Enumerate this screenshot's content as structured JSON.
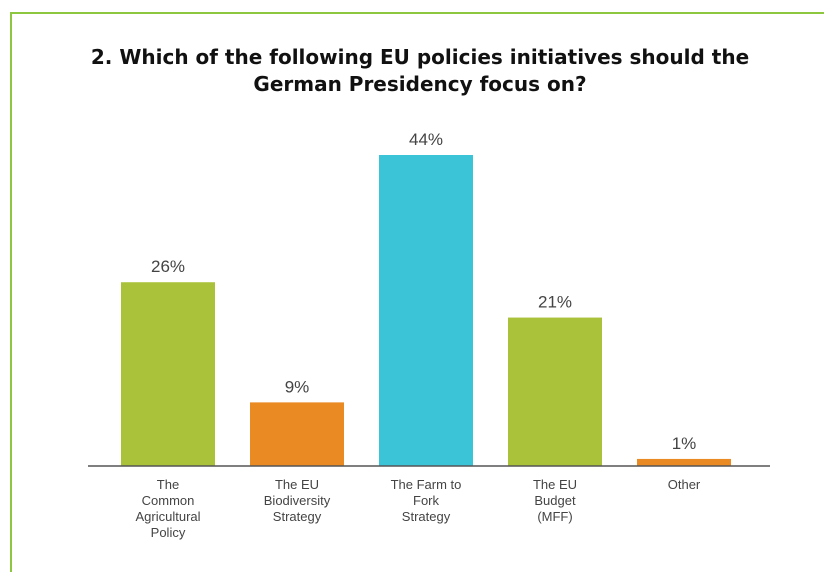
{
  "chart_data": {
    "type": "bar",
    "title": "2. Which of the following EU policies initiatives should the German Presidency focus on?",
    "categories": [
      [
        "The",
        "Common",
        "Agricultural",
        "Policy"
      ],
      [
        "The EU",
        "Biodiversity",
        "Strategy"
      ],
      [
        "The Farm to",
        "Fork",
        "Strategy"
      ],
      [
        "The EU",
        "Budget",
        "(MFF)"
      ],
      [
        "Other"
      ]
    ],
    "values": [
      26,
      9,
      44,
      21,
      1
    ],
    "value_labels": [
      "26%",
      "9%",
      "44%",
      "21%",
      "1%"
    ],
    "colors": [
      "#a9c23a",
      "#ea8a23",
      "#3bc3d8",
      "#a9c23a",
      "#ea8a23"
    ],
    "xlabel": "",
    "ylabel": "",
    "ylim": [
      0,
      44
    ],
    "grid": false,
    "legend": "none"
  },
  "style": {
    "frame_color": "#8dc63f",
    "axis_color": "#555555"
  }
}
